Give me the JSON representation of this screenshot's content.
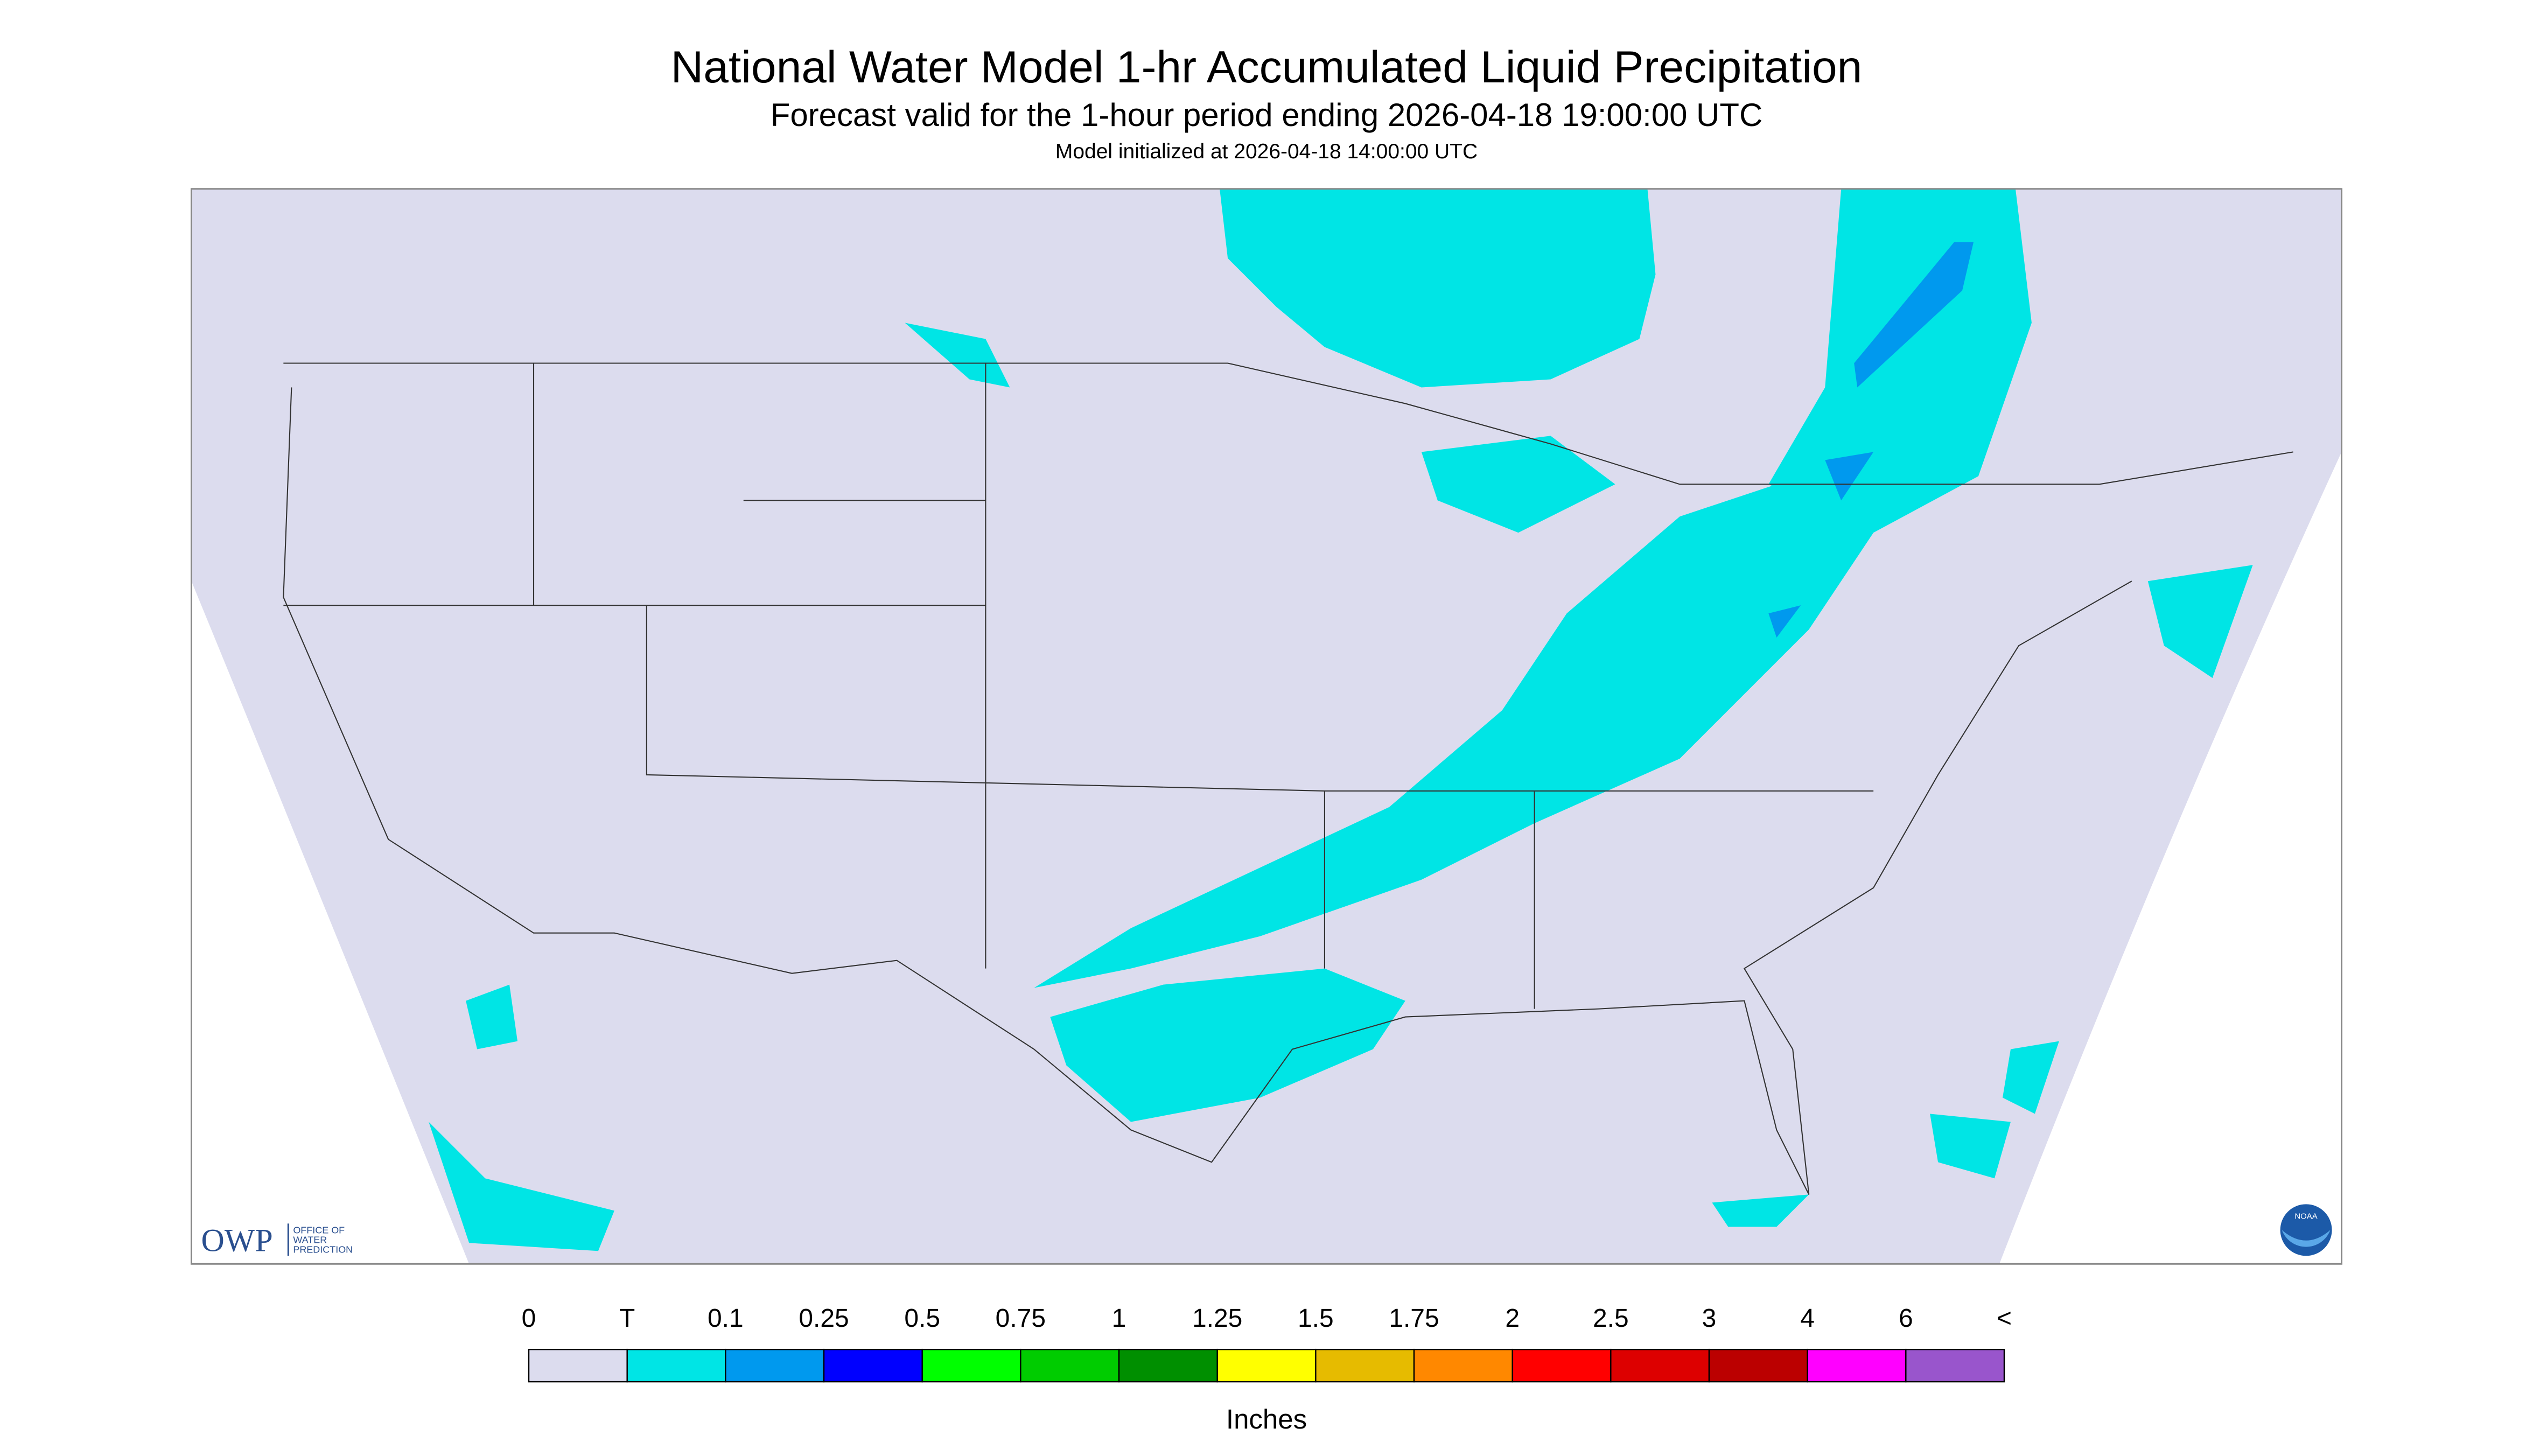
{
  "header": {
    "title": "National Water Model 1-hr Accumulated Liquid Precipitation",
    "subtitle": "Forecast valid for the 1-hour period ending 2026-04-18 19:00:00 UTC",
    "note": "Model initialized at 2026-04-18 14:00:00 UTC"
  },
  "logos": {
    "owp": "OWP",
    "owp_name": [
      "OFFICE OF",
      "WATER",
      "PREDICTION"
    ],
    "noaa": "NOAA"
  },
  "legend": {
    "labels": [
      "0",
      "T",
      "0.1",
      "0.25",
      "0.5",
      "0.75",
      "1",
      "1.25",
      "1.5",
      "1.75",
      "2",
      "2.5",
      "3",
      "4",
      "6",
      "<"
    ],
    "colors": [
      "#dcdcee",
      "#00e5e5",
      "#0099ee",
      "#0000ff",
      "#00ff00",
      "#00cc00",
      "#008f00",
      "#ffff00",
      "#e6bb00",
      "#ff8800",
      "#ff0000",
      "#dd0000",
      "#bb0000",
      "#ff00ff",
      "#9955cc"
    ],
    "units": "Inches"
  }
}
